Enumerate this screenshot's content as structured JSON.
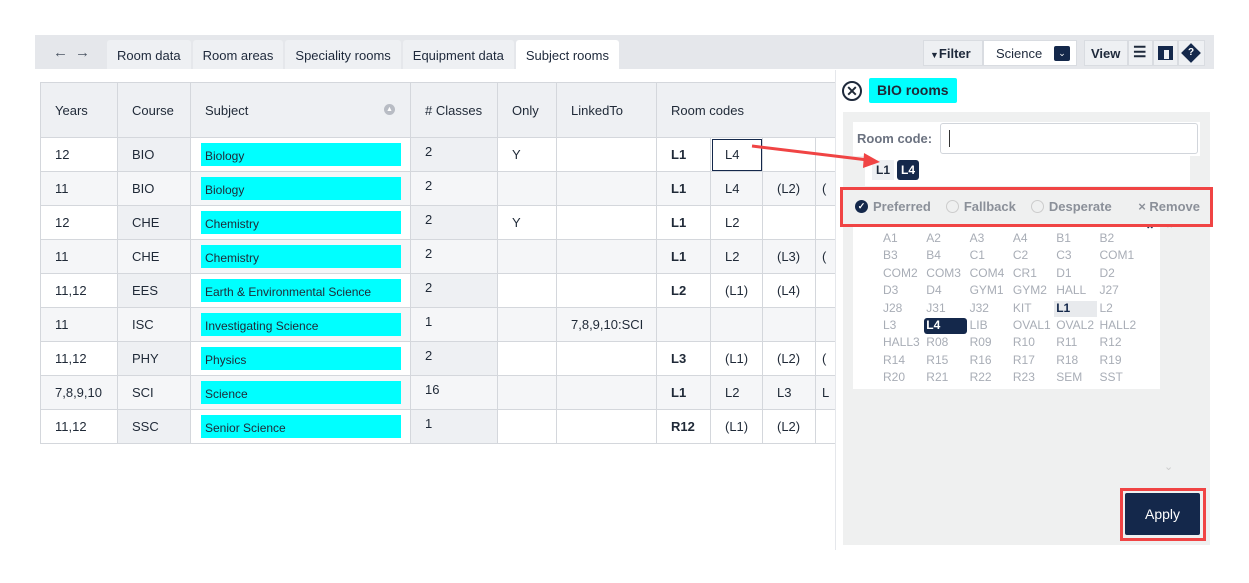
{
  "nav": {
    "back_icon": "arrow-left-icon",
    "forward_icon": "arrow-right-icon"
  },
  "tabs": [
    {
      "label": "Room data"
    },
    {
      "label": "Room areas"
    },
    {
      "label": "Speciality rooms"
    },
    {
      "label": "Equipment data"
    },
    {
      "label": "Subject rooms",
      "active": true
    }
  ],
  "toolbar": {
    "filter_label": "Filter",
    "filter_value": "Science",
    "view_label": "View"
  },
  "table": {
    "headers": [
      "Years",
      "Course",
      "Subject",
      "# Classes",
      "Only",
      "LinkedTo",
      "Room codes"
    ],
    "rows": [
      {
        "years": "12",
        "course": "BIO",
        "subject": "Biology",
        "classes": "2",
        "only": "Y",
        "linked": "",
        "rooms": [
          "L1",
          "L4",
          "",
          ""
        ]
      },
      {
        "years": "11",
        "course": "BIO",
        "subject": "Biology",
        "classes": "2",
        "only": "",
        "linked": "",
        "rooms": [
          "L1",
          "L4",
          "(L2)",
          "("
        ]
      },
      {
        "years": "12",
        "course": "CHE",
        "subject": "Chemistry",
        "classes": "2",
        "only": "Y",
        "linked": "",
        "rooms": [
          "L1",
          "L2",
          "",
          ""
        ]
      },
      {
        "years": "11",
        "course": "CHE",
        "subject": "Chemistry",
        "classes": "2",
        "only": "",
        "linked": "",
        "rooms": [
          "L1",
          "L2",
          "(L3)",
          "("
        ]
      },
      {
        "years": "11,12",
        "course": "EES",
        "subject": "Earth & Environmental Science",
        "classes": "2",
        "only": "",
        "linked": "",
        "rooms": [
          "L2",
          "(L1)",
          "(L4)",
          ""
        ]
      },
      {
        "years": "11",
        "course": "ISC",
        "subject": "Investigating Science",
        "classes": "1",
        "only": "",
        "linked": "7,8,9,10:SCI",
        "rooms": [
          "",
          "",
          "",
          ""
        ]
      },
      {
        "years": "11,12",
        "course": "PHY",
        "subject": "Physics",
        "classes": "2",
        "only": "",
        "linked": "",
        "rooms": [
          "L3",
          "(L1)",
          "(L2)",
          "("
        ]
      },
      {
        "years": "7,8,9,10",
        "course": "SCI",
        "subject": "Science",
        "classes": "16",
        "only": "",
        "linked": "",
        "rooms": [
          "L1",
          "L2",
          "L3",
          "L"
        ]
      },
      {
        "years": "11,12",
        "course": "SSC",
        "subject": "Senior Science",
        "classes": "1",
        "only": "",
        "linked": "",
        "rooms": [
          "R12",
          "(L1)",
          "(L2)",
          ""
        ]
      }
    ]
  },
  "panel": {
    "title": "BIO rooms",
    "room_code_label": "Room code:",
    "room_code_value": "",
    "chips": [
      "L1",
      "L4"
    ],
    "options": {
      "preferred": "Preferred",
      "fallback": "Fallback",
      "desperate": "Desperate",
      "remove": "Remove",
      "selected": "preferred"
    },
    "rooms": [
      "A1",
      "A2",
      "A3",
      "A4",
      "B1",
      "B2",
      "B3",
      "B4",
      "C1",
      "C2",
      "C3",
      "COM1",
      "COM2",
      "COM3",
      "COM4",
      "CR1",
      "D1",
      "D2",
      "D3",
      "D4",
      "GYM1",
      "GYM2",
      "HALL",
      "J27",
      "J28",
      "J31",
      "J32",
      "KIT",
      "L1",
      "L2",
      "L3",
      "L4",
      "LIB",
      "OVAL1",
      "OVAL2",
      "HALL2",
      "HALL3",
      "R08",
      "R09",
      "R10",
      "R11",
      "R12",
      "R14",
      "R15",
      "R16",
      "R17",
      "R18",
      "R19",
      "R20",
      "R21",
      "R22",
      "R23",
      "SEM",
      "SST"
    ],
    "selected_room": "L4",
    "highlighted_room": "L1",
    "apply_label": "Apply"
  },
  "colors": {
    "accent": "#14284b",
    "highlight": "#00ffff",
    "annotation": "#f04444"
  }
}
